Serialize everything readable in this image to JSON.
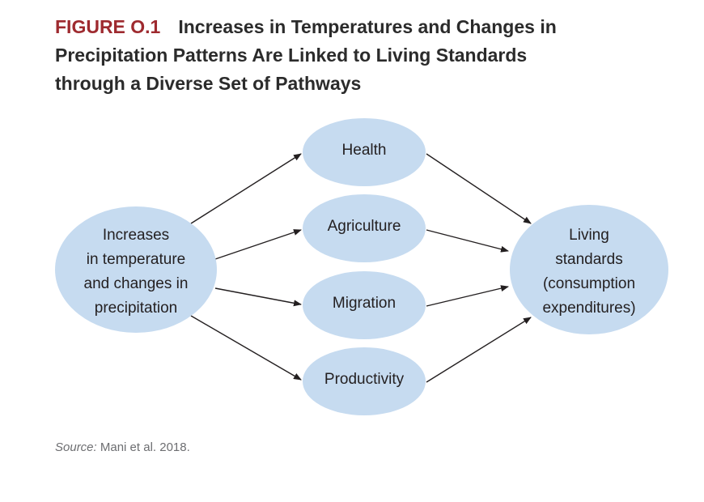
{
  "header": {
    "label": "FIGURE O.1",
    "title_line1": "Increases in Temperatures and Changes in",
    "title_line2": "Precipitation Patterns Are Linked to Living Standards",
    "title_line3": "through a Diverse Set of Pathways"
  },
  "diagram": {
    "source_node": {
      "lines": [
        "Increases",
        "in temperature",
        "and changes in",
        "precipitation"
      ]
    },
    "pathways": [
      {
        "label": "Health"
      },
      {
        "label": "Agriculture"
      },
      {
        "label": "Migration"
      },
      {
        "label": "Productivity"
      }
    ],
    "target_node": {
      "lines": [
        "Living",
        "standards",
        "(consumption",
        "expenditures)"
      ]
    },
    "colors": {
      "node_fill": "#c6dbf0",
      "arrow": "#231f20",
      "figure_label": "#9e2a2f"
    }
  },
  "footer": {
    "source_label": "Source:",
    "source_text": "Mani et al. 2018."
  }
}
